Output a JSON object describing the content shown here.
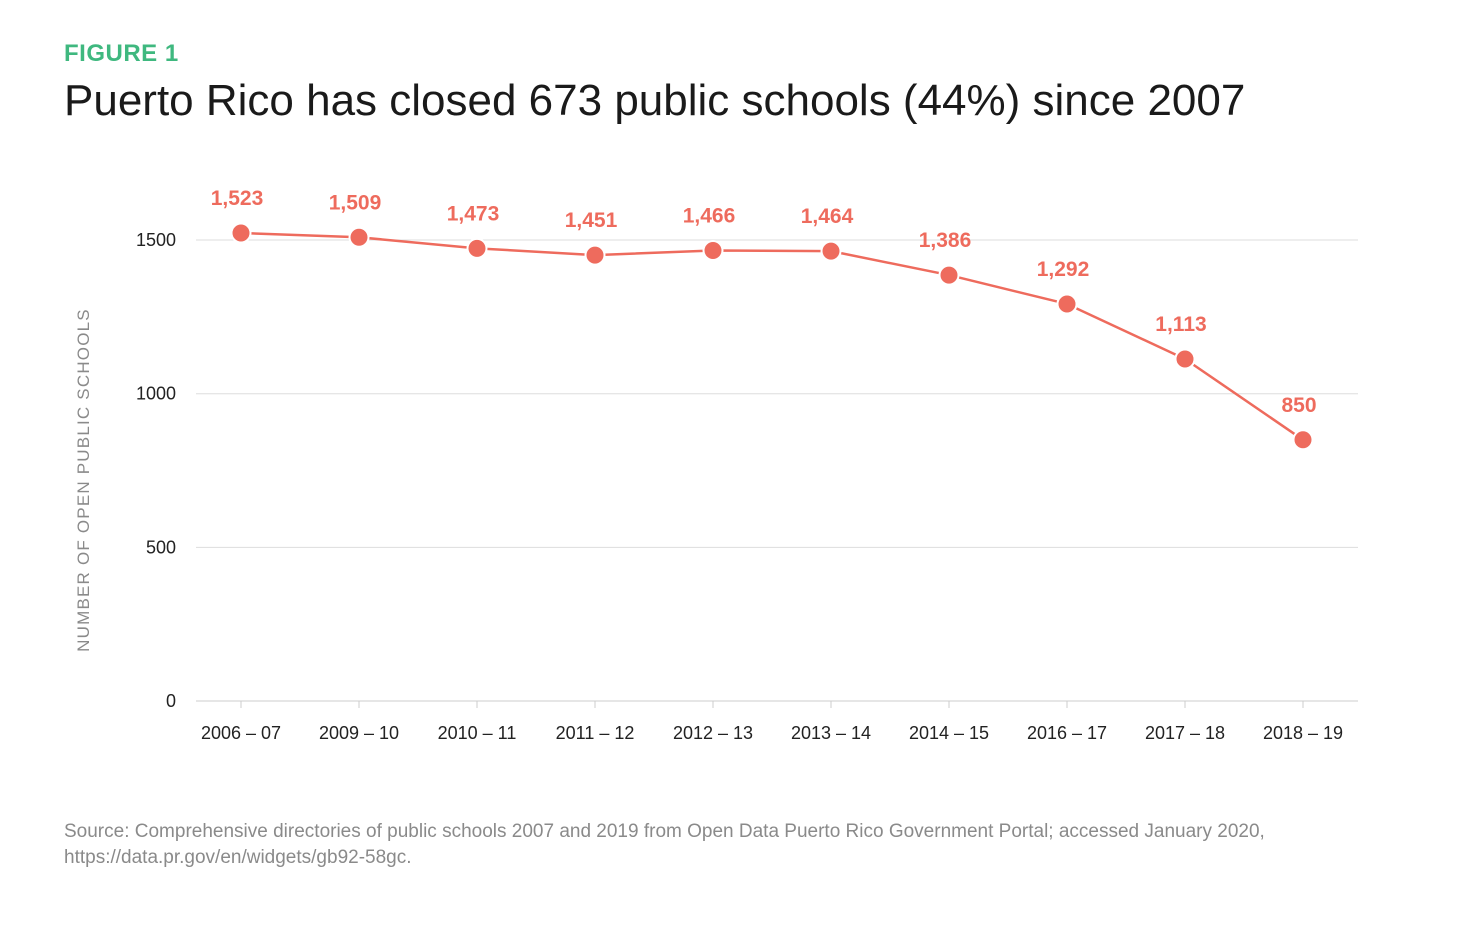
{
  "figure_label": "FIGURE 1",
  "title": "Puerto Rico has closed 673 public schools (44%) since 2007",
  "source": "Source: Comprehensive directories of public schools 2007 and 2019 from Open Data Puerto Rico Government Portal; accessed January 2020, https://data.pr.gov/en/widgets/gb92-58gc.",
  "colors": {
    "accent_green": "#3fb87f",
    "series": "#ee6b5d",
    "grid": "#dddddd",
    "axis_text": "#8a8a8a"
  },
  "chart_data": {
    "type": "line",
    "title": "Puerto Rico has closed 673 public schools (44%) since 2007",
    "xlabel": "",
    "ylabel": "NUMBER OF OPEN PUBLIC SCHOOLS",
    "categories": [
      "2006 – 07",
      "2009 – 10",
      "2010 – 11",
      "2011 – 12",
      "2012 – 13",
      "2013 – 14",
      "2014 – 15",
      "2016 – 17",
      "2017 – 18",
      "2018 – 19"
    ],
    "series": [
      {
        "values": [
          1523,
          1509,
          1473,
          1451,
          1466,
          1464,
          1386,
          1292,
          1113,
          850
        ],
        "labels": [
          "1,523",
          "1,509",
          "1,473",
          "1,451",
          "1,466",
          "1,464",
          "1,386",
          "1,292",
          "1,113",
          "850"
        ]
      }
    ],
    "ylim": [
      0,
      1500
    ],
    "yticks": [
      0,
      500,
      1000,
      1500
    ],
    "grid": true,
    "legend": "none"
  }
}
